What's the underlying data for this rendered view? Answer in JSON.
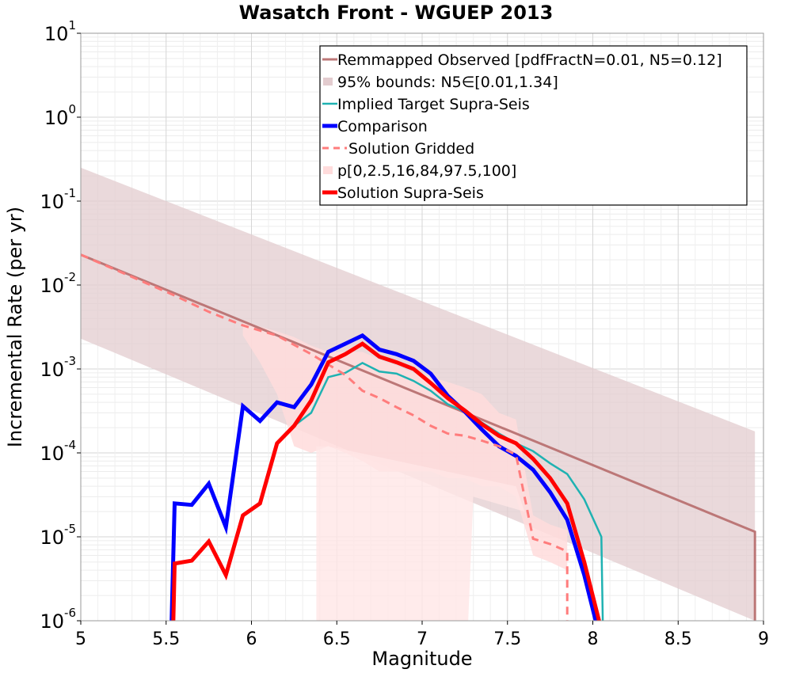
{
  "chart_data": {
    "type": "line",
    "title": "Wasatch Front - WGUEP 2013",
    "xlabel": "Magnitude",
    "ylabel": "Incremental Rate (per yr)",
    "xlim": [
      5,
      9
    ],
    "ylim": [
      1e-06,
      10
    ],
    "yscale": "log",
    "grid": true,
    "legend_position": "top-right",
    "xticks": [
      "5",
      "5.5",
      "6",
      "6.5",
      "7",
      "7.5",
      "8",
      "8.5",
      "9"
    ],
    "yticks": [
      {
        "base": "10",
        "exp": "-6",
        "value": 1e-06
      },
      {
        "base": "10",
        "exp": "-5",
        "value": 1e-05
      },
      {
        "base": "10",
        "exp": "-4",
        "value": 0.0001
      },
      {
        "base": "10",
        "exp": "-3",
        "value": 0.001
      },
      {
        "base": "10",
        "exp": "-2",
        "value": 0.01
      },
      {
        "base": "10",
        "exp": "-1",
        "value": 0.1
      },
      {
        "base": "10",
        "exp": "0",
        "value": 1
      },
      {
        "base": "10",
        "exp": "1",
        "value": 10
      }
    ],
    "bands": [
      {
        "name": "95% bounds: N5∈[0.01,1.34]",
        "color": "#e3cccf",
        "x": [
          5.0,
          8.95
        ],
        "upper": [
          0.25,
          0.00018
        ],
        "lower": [
          0.0023,
          7e-07
        ]
      },
      {
        "name": "p[0,2.5,16,84,97.5,100]",
        "color": "#ffdcdc",
        "x": [
          5.95,
          6.05,
          6.15,
          6.25,
          6.35,
          6.45,
          6.55,
          6.65,
          6.75,
          6.85,
          6.95,
          7.05,
          7.15,
          7.25,
          7.35,
          7.45,
          7.55,
          7.65,
          7.75,
          7.85
        ],
        "upper": [
          0.0035,
          0.0032,
          0.0028,
          0.0024,
          0.0019,
          0.0016,
          0.0016,
          0.0016,
          0.0013,
          0.0011,
          0.0009,
          0.0008,
          0.0007,
          0.0006,
          0.0005,
          0.0003,
          0.00025,
          1.8e-05,
          1.4e-05,
          1.2e-05
        ],
        "lower": [
          0.0025,
          0.0012,
          0.0005,
          0.00012,
          0.0001,
          0.00012,
          0.0001,
          8e-05,
          6e-05,
          6e-05,
          6e-05,
          6e-05,
          5e-05,
          5e-05,
          4e-05,
          4e-05,
          3e-05,
          6e-06,
          5e-06,
          4e-06
        ]
      }
    ],
    "series": [
      {
        "name": "Remmapped Observed [pdfFractN=0.01, N5=0.12]",
        "color": "#bc7777",
        "width": 3,
        "dash": "",
        "x": [
          5.0,
          8.95,
          8.95
        ],
        "y": [
          0.023,
          1.15e-05,
          1e-07
        ]
      },
      {
        "name": "Implied Target Supra-Seis",
        "color": "#1fb2b2",
        "width": 2.5,
        "dash": "",
        "x": [
          6.25,
          6.35,
          6.45,
          6.55,
          6.65,
          6.75,
          6.85,
          6.95,
          7.05,
          7.15,
          7.25,
          7.35,
          7.45,
          7.55,
          7.65,
          7.75,
          7.85,
          7.95,
          8.05,
          8.06
        ],
        "y": [
          0.00021,
          0.0003,
          0.0008,
          0.0009,
          0.00118,
          0.00093,
          0.00088,
          0.00072,
          0.00055,
          0.00038,
          0.00031,
          0.00023,
          0.00017,
          0.00013,
          0.000105,
          7.5e-05,
          5.6e-05,
          2.8e-05,
          1e-05,
          1e-07
        ]
      },
      {
        "name": "Comparison",
        "color": "#0000ff",
        "width": 5,
        "dash": "",
        "x": [
          5.53,
          5.55,
          5.65,
          5.75,
          5.85,
          5.95,
          6.05,
          6.15,
          6.25,
          6.35,
          6.45,
          6.55,
          6.65,
          6.75,
          6.85,
          6.95,
          7.05,
          7.15,
          7.25,
          7.35,
          7.45,
          7.55,
          7.65,
          7.75,
          7.85,
          7.95,
          8.04
        ],
        "y": [
          1e-07,
          2.5e-05,
          2.4e-05,
          4.3e-05,
          1.3e-05,
          0.00036,
          0.00024,
          0.0004,
          0.00035,
          0.00065,
          0.0016,
          0.002,
          0.0025,
          0.0017,
          0.0015,
          0.00125,
          0.00088,
          0.00048,
          0.00031,
          0.00019,
          0.00012,
          9.2e-05,
          6.3e-05,
          3.4e-05,
          1.6e-05,
          3.5e-06,
          1e-07
        ]
      },
      {
        "name": "Solution Gridded",
        "color": "#ff7c7c",
        "width": 3,
        "dash": "10,7",
        "x": [
          5.0,
          5.55,
          5.75,
          5.95,
          6.15,
          6.35,
          6.55,
          6.65,
          6.75,
          6.85,
          6.95,
          7.05,
          7.15,
          7.25,
          7.35,
          7.45,
          7.55,
          7.65,
          7.75,
          7.85,
          7.85
        ],
        "y": [
          0.023,
          0.0075,
          0.0048,
          0.0033,
          0.0025,
          0.0015,
          0.00085,
          0.00055,
          0.00045,
          0.00035,
          0.00028,
          0.00021,
          0.00017,
          0.00016,
          0.00014,
          0.00012,
          9.5e-05,
          9.5e-06,
          8.2e-06,
          6.7e-06,
          1e-07
        ]
      },
      {
        "name": "Solution Supra-Seis",
        "color": "#ff0000",
        "width": 5,
        "dash": "",
        "x": [
          5.54,
          5.55,
          5.65,
          5.75,
          5.85,
          5.95,
          6.05,
          6.15,
          6.25,
          6.35,
          6.45,
          6.55,
          6.65,
          6.75,
          6.85,
          6.95,
          7.05,
          7.15,
          7.25,
          7.35,
          7.45,
          7.55,
          7.65,
          7.75,
          7.85,
          7.95,
          8.06
        ],
        "y": [
          1e-07,
          4.8e-06,
          5.2e-06,
          8.8e-06,
          3.5e-06,
          1.8e-05,
          2.5e-05,
          0.00013,
          0.00021,
          0.00042,
          0.0012,
          0.0015,
          0.002,
          0.0014,
          0.0012,
          0.001,
          0.00068,
          0.00045,
          0.00032,
          0.00022,
          0.00016,
          0.00013,
          8.5e-05,
          5e-05,
          2.5e-05,
          5e-06,
          1e-07
        ]
      }
    ],
    "legend": [
      {
        "label": "Remmapped Observed [pdfFractN=0.01, N5=0.12]",
        "kind": "line",
        "color": "#bc7777",
        "width": 3,
        "dash": ""
      },
      {
        "label": "95% bounds: N5∈[0.01,1.34]",
        "kind": "band",
        "color": "#e3cccf"
      },
      {
        "label": "Implied Target Supra-Seis",
        "kind": "line",
        "color": "#1fb2b2",
        "width": 2.5,
        "dash": ""
      },
      {
        "label": "Comparison",
        "kind": "line",
        "color": "#0000ff",
        "width": 5,
        "dash": ""
      },
      {
        "label": "Solution Gridded",
        "kind": "line",
        "color": "#ff7c7c",
        "width": 3,
        "dash": "10,7"
      },
      {
        "label": "p[0,2.5,16,84,97.5,100]",
        "kind": "band",
        "color": "#ffdcdc"
      },
      {
        "label": "Solution Supra-Seis",
        "kind": "line",
        "color": "#ff0000",
        "width": 5,
        "dash": ""
      }
    ]
  }
}
